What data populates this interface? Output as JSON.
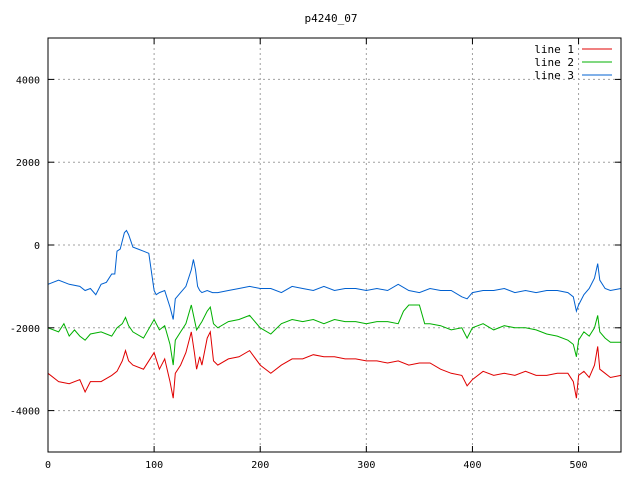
{
  "chart_data": {
    "type": "line",
    "title": "p4240_07",
    "xlabel": "",
    "ylabel": "",
    "xlim": [
      0,
      540
    ],
    "ylim": [
      -5000,
      5000
    ],
    "xticks": [
      0,
      100,
      200,
      300,
      400,
      500
    ],
    "yticks": [
      -4000,
      -2000,
      0,
      2000,
      4000
    ],
    "grid": true,
    "legend_position": "top-right",
    "series": [
      {
        "name": "line 1",
        "color": "#e00000",
        "x": [
          0,
          10,
          20,
          30,
          35,
          40,
          50,
          60,
          65,
          70,
          73,
          76,
          80,
          90,
          100,
          105,
          110,
          115,
          118,
          120,
          125,
          130,
          135,
          138,
          140,
          143,
          145,
          150,
          153,
          156,
          160,
          170,
          180,
          190,
          200,
          210,
          220,
          230,
          240,
          250,
          260,
          270,
          280,
          290,
          300,
          310,
          320,
          330,
          340,
          350,
          360,
          370,
          380,
          390,
          395,
          400,
          410,
          420,
          430,
          440,
          450,
          460,
          470,
          480,
          490,
          495,
          498,
          500,
          505,
          510,
          515,
          518,
          520,
          525,
          530,
          540
        ],
        "y": [
          -3100,
          -3300,
          -3350,
          -3250,
          -3550,
          -3300,
          -3300,
          -3150,
          -3050,
          -2800,
          -2550,
          -2800,
          -2900,
          -3000,
          -2600,
          -3000,
          -2750,
          -3300,
          -3700,
          -3100,
          -2900,
          -2600,
          -2100,
          -2600,
          -3000,
          -2700,
          -2900,
          -2250,
          -2100,
          -2800,
          -2900,
          -2750,
          -2700,
          -2550,
          -2900,
          -3100,
          -2900,
          -2750,
          -2750,
          -2650,
          -2700,
          -2700,
          -2750,
          -2750,
          -2800,
          -2800,
          -2850,
          -2800,
          -2900,
          -2850,
          -2850,
          -3000,
          -3100,
          -3150,
          -3400,
          -3250,
          -3050,
          -3150,
          -3100,
          -3150,
          -3050,
          -3150,
          -3150,
          -3100,
          -3100,
          -3300,
          -3700,
          -3150,
          -3050,
          -3200,
          -2900,
          -2450,
          -3000,
          -3100,
          -3200,
          -3150
        ]
      },
      {
        "name": "line 2",
        "color": "#00b000",
        "x": [
          0,
          10,
          15,
          20,
          25,
          30,
          35,
          40,
          50,
          60,
          65,
          70,
          73,
          76,
          80,
          90,
          100,
          105,
          110,
          115,
          118,
          120,
          125,
          130,
          135,
          138,
          140,
          145,
          150,
          153,
          156,
          160,
          170,
          180,
          190,
          200,
          210,
          220,
          230,
          240,
          250,
          260,
          270,
          280,
          290,
          300,
          310,
          320,
          330,
          335,
          340,
          350,
          355,
          360,
          370,
          380,
          390,
          395,
          400,
          410,
          420,
          430,
          440,
          450,
          460,
          470,
          480,
          490,
          495,
          498,
          500,
          505,
          510,
          515,
          518,
          520,
          525,
          530,
          540
        ],
        "y": [
          -2000,
          -2100,
          -1900,
          -2200,
          -2050,
          -2200,
          -2300,
          -2150,
          -2100,
          -2200,
          -2000,
          -1900,
          -1750,
          -1950,
          -2100,
          -2250,
          -1800,
          -2050,
          -1950,
          -2400,
          -2900,
          -2300,
          -2100,
          -1900,
          -1450,
          -1800,
          -2050,
          -1850,
          -1600,
          -1500,
          -1900,
          -2000,
          -1850,
          -1800,
          -1700,
          -2000,
          -2150,
          -1900,
          -1800,
          -1850,
          -1800,
          -1900,
          -1800,
          -1850,
          -1850,
          -1900,
          -1850,
          -1850,
          -1900,
          -1600,
          -1450,
          -1450,
          -1900,
          -1900,
          -1950,
          -2050,
          -2000,
          -2250,
          -2000,
          -1900,
          -2050,
          -1950,
          -2000,
          -2000,
          -2050,
          -2150,
          -2200,
          -2300,
          -2400,
          -2700,
          -2300,
          -2100,
          -2200,
          -2000,
          -1700,
          -2100,
          -2250,
          -2350,
          -2350
        ]
      },
      {
        "name": "line 3",
        "color": "#0060d0",
        "x": [
          0,
          10,
          20,
          30,
          35,
          40,
          45,
          50,
          55,
          60,
          63,
          65,
          68,
          70,
          72,
          74,
          76,
          78,
          80,
          85,
          90,
          95,
          100,
          102,
          105,
          110,
          115,
          118,
          120,
          125,
          130,
          135,
          137,
          139,
          141,
          143,
          145,
          150,
          155,
          160,
          170,
          180,
          190,
          200,
          210,
          220,
          230,
          240,
          250,
          260,
          270,
          280,
          290,
          300,
          310,
          320,
          330,
          340,
          350,
          360,
          370,
          380,
          390,
          395,
          400,
          410,
          420,
          430,
          440,
          450,
          460,
          470,
          480,
          490,
          495,
          498,
          500,
          505,
          510,
          515,
          518,
          520,
          525,
          530,
          540
        ],
        "y": [
          -950,
          -850,
          -950,
          -1000,
          -1100,
          -1050,
          -1200,
          -950,
          -900,
          -700,
          -700,
          -150,
          -100,
          100,
          300,
          350,
          250,
          100,
          -50,
          -100,
          -150,
          -200,
          -1100,
          -1200,
          -1150,
          -1100,
          -1500,
          -1800,
          -1300,
          -1150,
          -1000,
          -600,
          -350,
          -600,
          -1000,
          -1100,
          -1150,
          -1100,
          -1150,
          -1150,
          -1100,
          -1050,
          -1000,
          -1050,
          -1050,
          -1150,
          -1000,
          -1050,
          -1100,
          -1000,
          -1100,
          -1050,
          -1050,
          -1100,
          -1050,
          -1100,
          -950,
          -1100,
          -1150,
          -1050,
          -1100,
          -1100,
          -1250,
          -1300,
          -1150,
          -1100,
          -1100,
          -1050,
          -1150,
          -1100,
          -1150,
          -1100,
          -1100,
          -1150,
          -1250,
          -1600,
          -1450,
          -1200,
          -1050,
          -800,
          -450,
          -850,
          -1050,
          -1100,
          -1050
        ]
      }
    ]
  }
}
